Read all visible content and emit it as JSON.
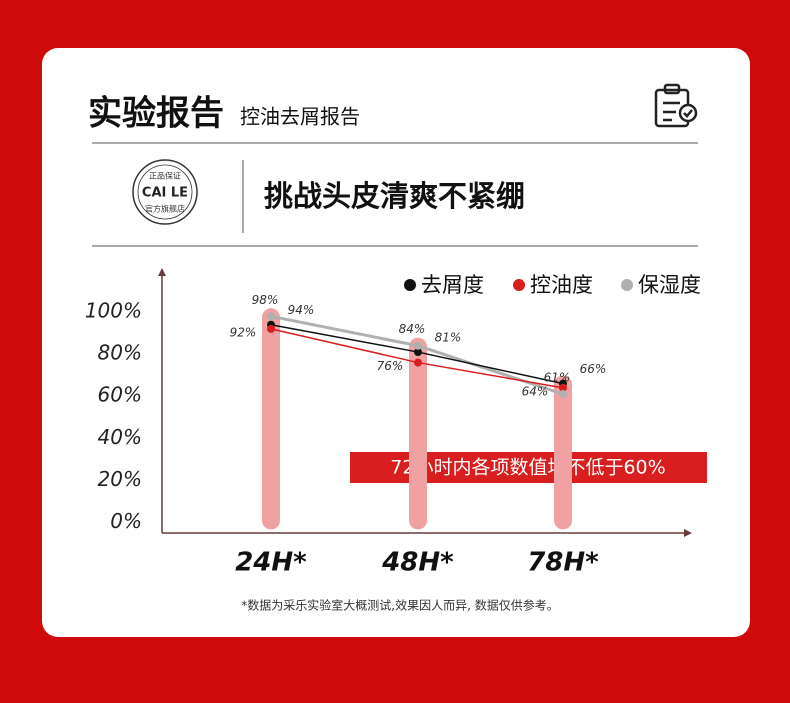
{
  "header": {
    "title": "实验报告",
    "subtitle": "控油去屑报告"
  },
  "logo": {
    "brand": "CAI LE",
    "top_text": "正品保证",
    "bottom_text": "官方旗舰店"
  },
  "headline": "挑战头皮清爽不紧绷",
  "chart_data": {
    "type": "line",
    "categories": [
      "24H*",
      "48H*",
      "78H*"
    ],
    "series": [
      {
        "name": "去屑度",
        "color": "#111111",
        "values": [
          94,
          81,
          66
        ],
        "value_labels": [
          "94%",
          "81%",
          "66%"
        ]
      },
      {
        "name": "控油度",
        "color": "#d81e1e",
        "values": [
          92,
          76,
          64
        ],
        "value_labels": [
          "92%",
          "76%",
          "64%"
        ]
      },
      {
        "name": "保湿度",
        "color": "#b0b0b0",
        "values": [
          98,
          84,
          61
        ],
        "value_labels": [
          "98%",
          "84%",
          "61%"
        ]
      }
    ],
    "ylim": [
      -5,
      120
    ],
    "yticks": [
      {
        "value": 0,
        "label": "0%"
      },
      {
        "value": 20,
        "label": "20%"
      },
      {
        "value": 40,
        "label": "40%"
      },
      {
        "value": 60,
        "label": "60%"
      },
      {
        "value": 80,
        "label": "80%"
      },
      {
        "value": 100,
        "label": "100%"
      }
    ],
    "legend": "top-right",
    "annotation": "72小时内各项数值均不低于60%",
    "note": "*数据为采乐实验室大概测试,效果因人而异, 数据仅供参考。"
  }
}
